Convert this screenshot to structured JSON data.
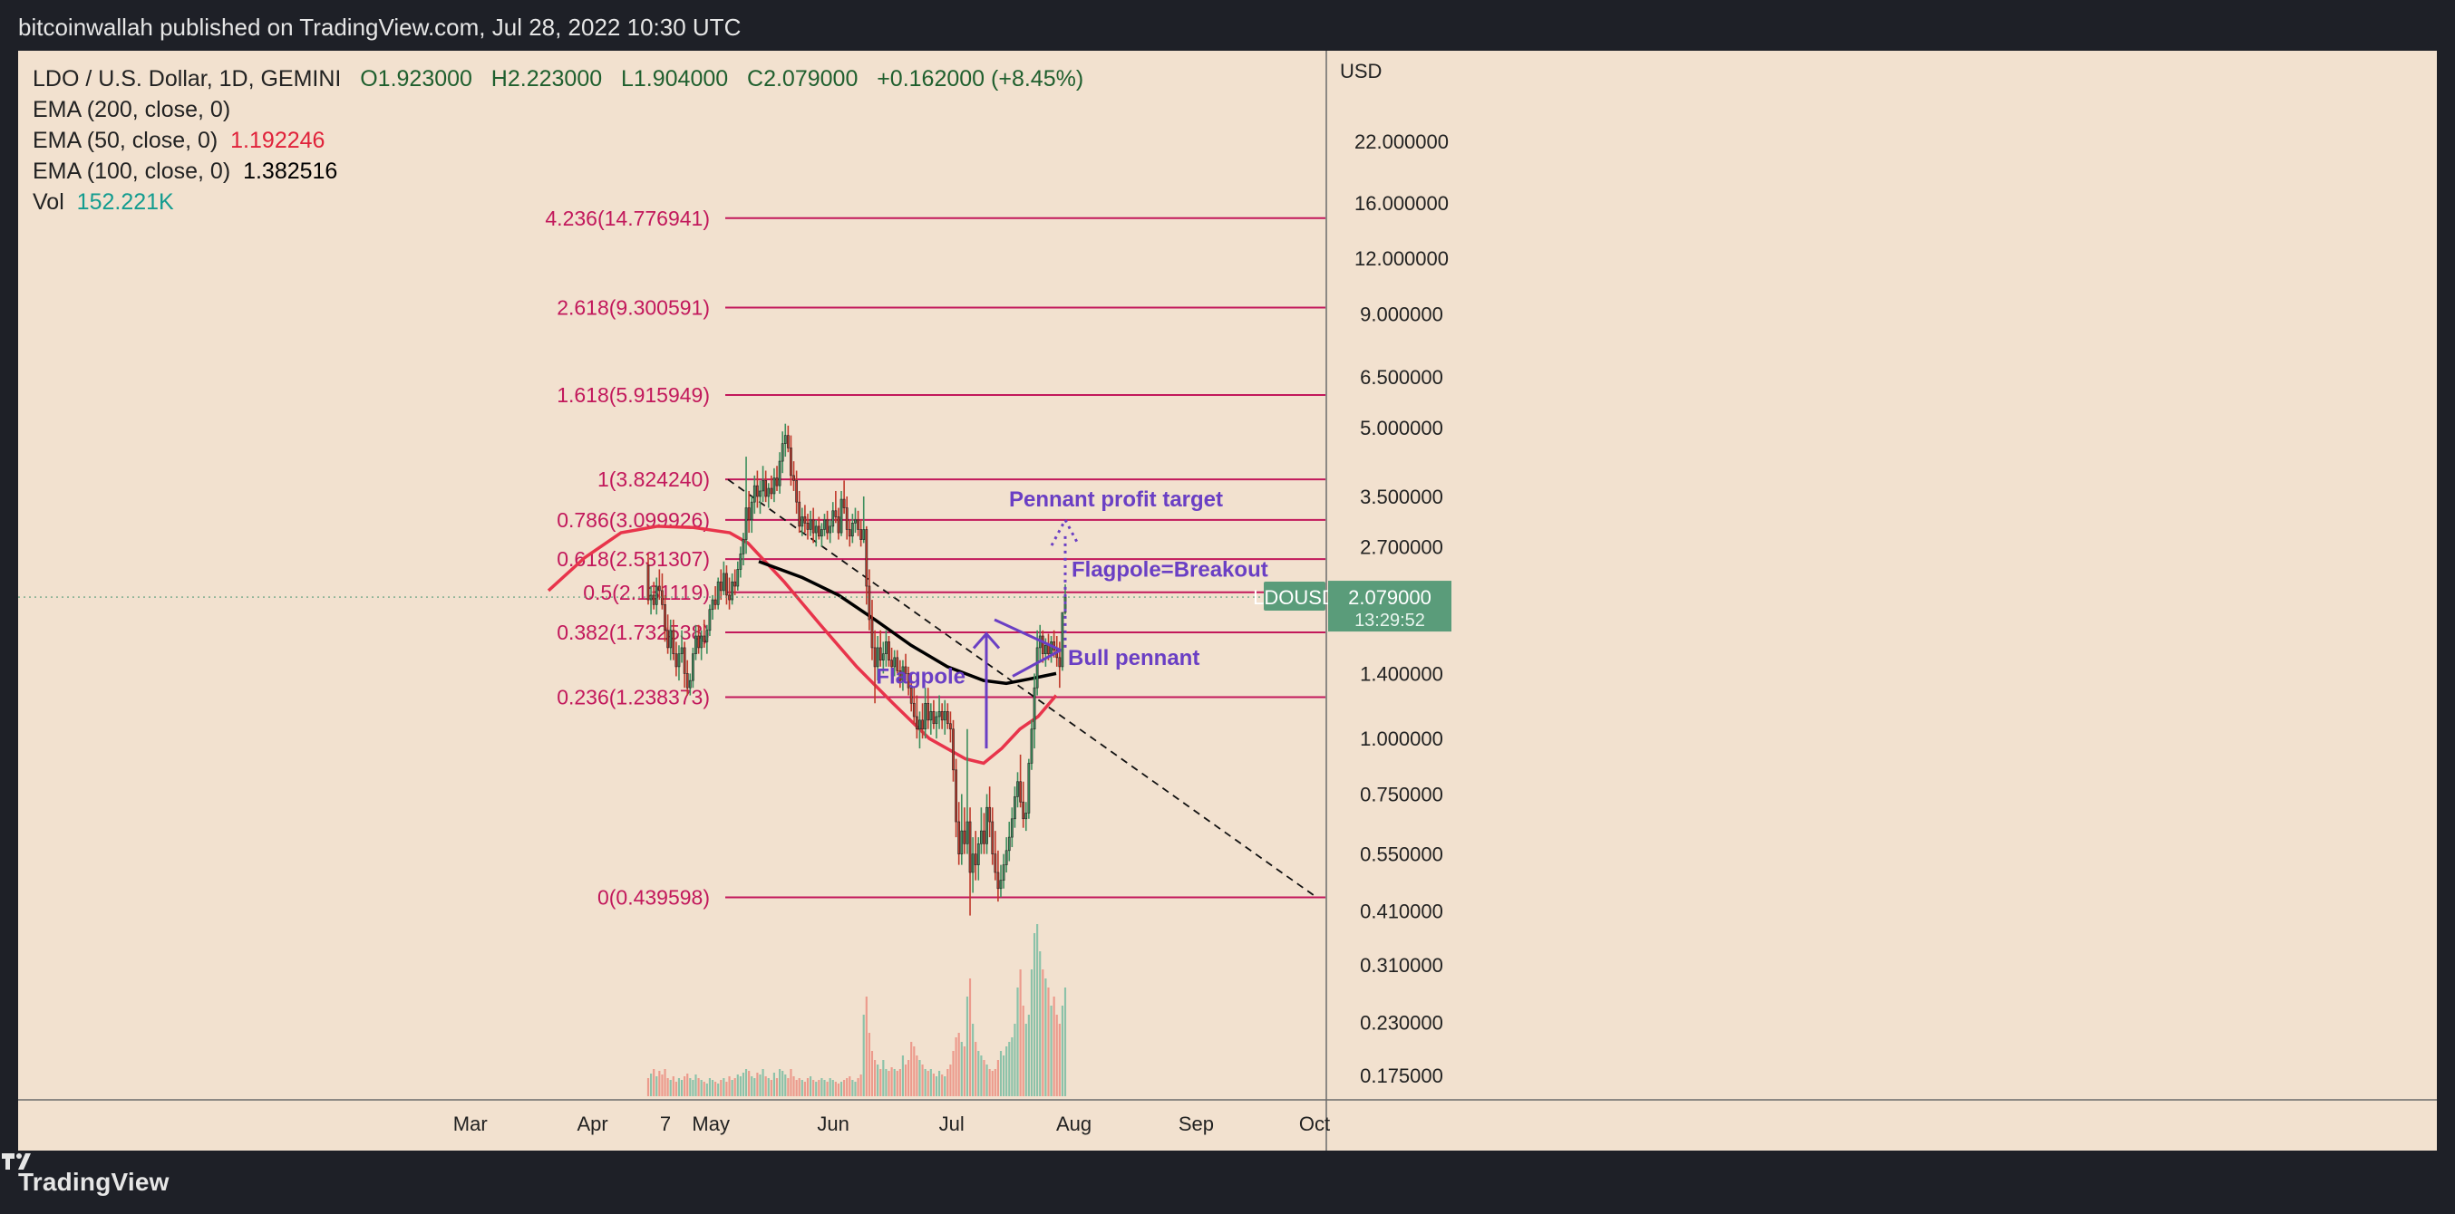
{
  "header": {
    "publisher": "bitcoinwallah published on TradingView.com, Jul 28, 2022 10:30 UTC"
  },
  "footer": {
    "brand": "TradingView"
  },
  "legend": {
    "symbol": "LDO / U.S. Dollar, 1D, GEMINI",
    "ohlc": {
      "o_label": "O",
      "o": "1.923000",
      "h_label": "H",
      "h": "2.223000",
      "l_label": "L",
      "l": "1.904000",
      "c_label": "C",
      "c": "2.079000",
      "change": "+0.162000 (+8.45%)"
    },
    "ema200": {
      "label": "EMA (200, close, 0)",
      "value": ""
    },
    "ema50": {
      "label": "EMA (50, close, 0)",
      "value": "1.192246"
    },
    "ema100": {
      "label": "EMA (100, close, 0)",
      "value": "1.382516"
    },
    "vol": {
      "label": "Vol",
      "value": "152.221K"
    }
  },
  "colors": {
    "background": "#f2e1cf",
    "fib": "#c2185b",
    "up": "#3e8f5e",
    "down": "#c0392b",
    "ema50": "#e8344b",
    "ema100": "#000000",
    "annotation": "#6a3fc4",
    "price_tag": "#5a9c7a"
  },
  "chart_data": {
    "type": "candlestick",
    "y_scale": "log",
    "y_axis_title": "USD",
    "ylim": [
      0.16,
      32
    ],
    "y_ticks": [
      "22.000000",
      "16.000000",
      "12.000000",
      "9.000000",
      "6.500000",
      "5.000000",
      "3.500000",
      "2.700000",
      "1.400000",
      "1.000000",
      "0.750000",
      "0.550000",
      "0.410000",
      "0.310000",
      "0.230000",
      "0.175000"
    ],
    "x_ticks": [
      "7",
      "Mar",
      "Apr",
      "May",
      "Jun",
      "Jul",
      "Aug",
      "Sep",
      "Oct"
    ],
    "x_range": [
      "2022-02-07",
      "2022-10-01"
    ],
    "fib_levels": [
      {
        "label": "4.236(14.776941)",
        "value": 14.776941
      },
      {
        "label": "2.618(9.300591)",
        "value": 9.300591
      },
      {
        "label": "1.618(5.915949)",
        "value": 5.915949
      },
      {
        "label": "1(3.824240)",
        "value": 3.82424
      },
      {
        "label": "0.786(3.099926)",
        "value": 3.099926
      },
      {
        "label": "0.618(2.531307)",
        "value": 2.531307
      },
      {
        "label": "0.5(2.131119)",
        "value": 2.131119
      },
      {
        "label": "0.382(1.732538)",
        "value": 1.732538
      },
      {
        "label": "0.236(1.238373)",
        "value": 1.238373
      },
      {
        "label": "0(0.439598)",
        "value": 0.439598
      }
    ],
    "last_price": {
      "symbol": "LDOUSD",
      "value": "2.079000",
      "countdown": "13:29:52"
    },
    "annotations": {
      "target": "Pennant profit target",
      "breakout": "Flagpole=Breakout",
      "pennant": "Bull pennant",
      "flagpole": "Flagpole"
    },
    "ohlc_daily": [
      [
        2.45,
        2.6,
        2.0,
        2.05
      ],
      [
        2.05,
        2.2,
        1.9,
        2.1
      ],
      [
        2.1,
        2.25,
        1.95,
        2.0
      ],
      [
        2.0,
        2.3,
        1.9,
        2.2
      ],
      [
        2.2,
        2.4,
        2.05,
        2.15
      ],
      [
        2.15,
        2.35,
        1.95,
        2.0
      ],
      [
        2.0,
        2.1,
        1.65,
        1.75
      ],
      [
        1.75,
        1.9,
        1.55,
        1.6
      ],
      [
        1.6,
        1.85,
        1.5,
        1.75
      ],
      [
        1.75,
        1.85,
        1.5,
        1.55
      ],
      [
        1.55,
        1.65,
        1.38,
        1.45
      ],
      [
        1.45,
        1.62,
        1.35,
        1.55
      ],
      [
        1.55,
        1.75,
        1.48,
        1.6
      ],
      [
        1.6,
        1.65,
        1.3,
        1.4
      ],
      [
        1.4,
        1.5,
        1.25,
        1.3
      ],
      [
        1.3,
        1.4,
        1.25,
        1.35
      ],
      [
        1.35,
        1.6,
        1.3,
        1.55
      ],
      [
        1.55,
        1.8,
        1.5,
        1.7
      ],
      [
        1.7,
        1.8,
        1.55,
        1.6
      ],
      [
        1.6,
        1.75,
        1.5,
        1.7
      ],
      [
        1.7,
        1.85,
        1.6,
        1.65
      ],
      [
        1.65,
        1.8,
        1.55,
        1.75
      ],
      [
        1.75,
        2.0,
        1.7,
        1.95
      ],
      [
        1.95,
        2.1,
        1.85,
        2.05
      ],
      [
        2.05,
        2.2,
        1.95,
        2.0
      ],
      [
        2.0,
        2.3,
        1.95,
        2.25
      ],
      [
        2.25,
        2.4,
        2.05,
        2.15
      ],
      [
        2.15,
        2.5,
        2.1,
        2.35
      ],
      [
        2.35,
        2.45,
        2.0,
        2.1
      ],
      [
        2.1,
        2.3,
        1.95,
        2.05
      ],
      [
        2.05,
        2.35,
        2.0,
        2.25
      ],
      [
        2.25,
        2.4,
        2.1,
        2.2
      ],
      [
        2.2,
        2.5,
        2.15,
        2.4
      ],
      [
        2.4,
        2.7,
        2.3,
        2.6
      ],
      [
        2.6,
        2.9,
        2.45,
        2.8
      ],
      [
        2.8,
        4.3,
        2.6,
        3.3
      ],
      [
        3.3,
        3.6,
        2.9,
        3.1
      ],
      [
        3.1,
        3.5,
        2.9,
        3.4
      ],
      [
        3.4,
        3.9,
        3.2,
        3.7
      ],
      [
        3.7,
        4.0,
        3.3,
        3.5
      ],
      [
        3.5,
        3.8,
        3.2,
        3.6
      ],
      [
        3.6,
        4.1,
        3.4,
        3.8
      ],
      [
        3.8,
        4.0,
        3.4,
        3.5
      ],
      [
        3.5,
        3.75,
        3.3,
        3.65
      ],
      [
        3.65,
        3.9,
        3.45,
        3.55
      ],
      [
        3.55,
        4.05,
        3.4,
        3.85
      ],
      [
        3.85,
        4.1,
        3.6,
        3.7
      ],
      [
        3.7,
        4.4,
        3.55,
        4.2
      ],
      [
        4.2,
        4.9,
        3.95,
        4.6
      ],
      [
        4.6,
        5.1,
        4.3,
        4.8
      ],
      [
        4.8,
        5.05,
        4.4,
        4.5
      ],
      [
        4.5,
        4.8,
        3.7,
        3.9
      ],
      [
        3.9,
        4.2,
        3.6,
        3.8
      ],
      [
        3.8,
        4.0,
        3.2,
        3.4
      ],
      [
        3.4,
        3.6,
        2.9,
        3.0
      ],
      [
        3.0,
        3.3,
        2.85,
        3.15
      ],
      [
        3.15,
        3.35,
        2.9,
        3.05
      ],
      [
        3.05,
        3.2,
        2.8,
        2.95
      ],
      [
        2.95,
        3.25,
        2.85,
        3.1
      ],
      [
        3.1,
        3.3,
        2.75,
        2.9
      ],
      [
        2.9,
        3.1,
        2.7,
        3.0
      ],
      [
        3.0,
        3.15,
        2.8,
        2.85
      ],
      [
        2.85,
        3.05,
        2.7,
        2.95
      ],
      [
        2.95,
        3.2,
        2.85,
        3.1
      ],
      [
        3.1,
        3.25,
        2.8,
        2.9
      ],
      [
        2.9,
        3.1,
        2.75,
        3.0
      ],
      [
        3.0,
        3.4,
        2.9,
        3.25
      ],
      [
        3.25,
        3.6,
        3.05,
        3.15
      ],
      [
        3.15,
        3.3,
        2.8,
        2.9
      ],
      [
        2.9,
        3.6,
        2.85,
        3.45
      ],
      [
        3.45,
        3.8,
        3.2,
        3.3
      ],
      [
        3.3,
        3.5,
        2.8,
        2.95
      ],
      [
        2.95,
        3.1,
        2.7,
        2.85
      ],
      [
        2.85,
        3.2,
        2.75,
        3.05
      ],
      [
        3.05,
        3.3,
        2.9,
        3.1
      ],
      [
        3.1,
        3.25,
        2.85,
        2.95
      ],
      [
        2.95,
        3.1,
        2.7,
        2.8
      ],
      [
        2.8,
        3.5,
        2.75,
        2.95
      ],
      [
        2.95,
        3.0,
        2.0,
        2.2
      ],
      [
        2.2,
        2.4,
        1.75,
        1.85
      ],
      [
        1.85,
        2.05,
        1.5,
        1.6
      ],
      [
        1.6,
        1.75,
        1.2,
        1.45
      ],
      [
        1.45,
        1.7,
        1.35,
        1.6
      ],
      [
        1.6,
        1.75,
        1.45,
        1.5
      ],
      [
        1.5,
        1.65,
        1.4,
        1.55
      ],
      [
        1.55,
        1.75,
        1.45,
        1.65
      ],
      [
        1.65,
        1.7,
        1.45,
        1.5
      ],
      [
        1.5,
        1.6,
        1.38,
        1.45
      ],
      [
        1.45,
        1.58,
        1.38,
        1.52
      ],
      [
        1.52,
        1.58,
        1.4,
        1.42
      ],
      [
        1.42,
        1.5,
        1.3,
        1.35
      ],
      [
        1.35,
        1.5,
        1.28,
        1.45
      ],
      [
        1.45,
        1.55,
        1.35,
        1.4
      ],
      [
        1.4,
        1.45,
        1.25,
        1.3
      ],
      [
        1.3,
        1.4,
        1.15,
        1.2
      ],
      [
        1.2,
        1.3,
        1.08,
        1.12
      ],
      [
        1.12,
        1.25,
        1.0,
        1.05
      ],
      [
        1.05,
        1.15,
        0.95,
        1.1
      ],
      [
        1.1,
        1.2,
        1.0,
        1.05
      ],
      [
        1.05,
        1.3,
        1.0,
        1.2
      ],
      [
        1.2,
        1.3,
        1.05,
        1.1
      ],
      [
        1.1,
        1.2,
        1.02,
        1.15
      ],
      [
        1.15,
        1.22,
        1.05,
        1.08
      ],
      [
        1.08,
        1.15,
        1.0,
        1.12
      ],
      [
        1.12,
        1.25,
        1.05,
        1.15
      ],
      [
        1.15,
        1.2,
        1.05,
        1.1
      ],
      [
        1.1,
        1.22,
        1.02,
        1.15
      ],
      [
        1.15,
        1.2,
        1.05,
        1.08
      ],
      [
        1.08,
        1.15,
        0.98,
        1.05
      ],
      [
        1.05,
        1.1,
        0.8,
        0.85
      ],
      [
        0.85,
        0.9,
        0.6,
        0.65
      ],
      [
        0.65,
        0.72,
        0.52,
        0.55
      ],
      [
        0.55,
        0.75,
        0.52,
        0.62
      ],
      [
        0.62,
        0.7,
        0.55,
        0.58
      ],
      [
        0.58,
        1.05,
        0.55,
        0.65
      ],
      [
        0.65,
        0.7,
        0.4,
        0.5
      ],
      [
        0.5,
        0.6,
        0.45,
        0.55
      ],
      [
        0.55,
        0.62,
        0.48,
        0.52
      ],
      [
        0.52,
        0.6,
        0.48,
        0.58
      ],
      [
        0.58,
        0.7,
        0.55,
        0.62
      ],
      [
        0.62,
        0.68,
        0.55,
        0.58
      ],
      [
        0.58,
        0.75,
        0.55,
        0.7
      ],
      [
        0.7,
        0.78,
        0.6,
        0.65
      ],
      [
        0.65,
        0.7,
        0.52,
        0.55
      ],
      [
        0.55,
        0.62,
        0.48,
        0.5
      ],
      [
        0.5,
        0.56,
        0.43,
        0.46
      ],
      [
        0.46,
        0.52,
        0.44,
        0.48
      ],
      [
        0.48,
        0.55,
        0.46,
        0.52
      ],
      [
        0.52,
        0.6,
        0.5,
        0.56
      ],
      [
        0.56,
        0.65,
        0.53,
        0.6
      ],
      [
        0.6,
        0.7,
        0.57,
        0.66
      ],
      [
        0.66,
        0.78,
        0.63,
        0.74
      ],
      [
        0.74,
        0.84,
        0.7,
        0.8
      ],
      [
        0.8,
        0.92,
        0.7,
        0.72
      ],
      [
        0.72,
        0.8,
        0.63,
        0.66
      ],
      [
        0.66,
        0.72,
        0.62,
        0.68
      ],
      [
        0.68,
        0.9,
        0.66,
        0.88
      ],
      [
        0.88,
        1.1,
        0.85,
        1.05
      ],
      [
        1.05,
        1.4,
        0.95,
        1.3
      ],
      [
        1.3,
        1.75,
        1.25,
        1.6
      ],
      [
        1.6,
        1.8,
        1.5,
        1.7
      ],
      [
        1.7,
        1.75,
        1.48,
        1.55
      ],
      [
        1.55,
        1.68,
        1.45,
        1.62
      ],
      [
        1.62,
        1.72,
        1.5,
        1.55
      ],
      [
        1.55,
        1.7,
        1.48,
        1.65
      ],
      [
        1.65,
        1.75,
        1.52,
        1.58
      ],
      [
        1.58,
        1.7,
        1.45,
        1.52
      ],
      [
        1.52,
        1.65,
        1.3,
        1.45
      ],
      [
        1.45,
        1.85,
        1.42,
        1.92
      ],
      [
        1.92,
        2.22,
        1.9,
        2.08
      ]
    ],
    "volume": [
      0.02,
      0.025,
      0.03,
      0.022,
      0.028,
      0.024,
      0.03,
      0.02,
      0.018,
      0.022,
      0.016,
      0.02,
      0.018,
      0.022,
      0.025,
      0.02,
      0.018,
      0.024,
      0.02,
      0.018,
      0.016,
      0.014,
      0.02,
      0.018,
      0.016,
      0.014,
      0.018,
      0.02,
      0.016,
      0.022,
      0.018,
      0.02,
      0.024,
      0.022,
      0.026,
      0.03,
      0.028,
      0.022,
      0.02,
      0.026,
      0.024,
      0.03,
      0.022,
      0.02,
      0.018,
      0.026,
      0.02,
      0.03,
      0.028,
      0.024,
      0.02,
      0.03,
      0.022,
      0.018,
      0.02,
      0.018,
      0.016,
      0.02,
      0.022,
      0.018,
      0.016,
      0.018,
      0.02,
      0.018,
      0.016,
      0.02,
      0.018,
      0.016,
      0.014,
      0.016,
      0.018,
      0.02,
      0.022,
      0.018,
      0.016,
      0.02,
      0.024,
      0.09,
      0.11,
      0.07,
      0.05,
      0.04,
      0.035,
      0.03,
      0.04,
      0.03,
      0.028,
      0.032,
      0.03,
      0.028,
      0.03,
      0.045,
      0.035,
      0.04,
      0.06,
      0.055,
      0.045,
      0.04,
      0.035,
      0.03,
      0.028,
      0.03,
      0.025,
      0.022,
      0.028,
      0.024,
      0.022,
      0.03,
      0.035,
      0.05,
      0.065,
      0.07,
      0.06,
      0.055,
      0.11,
      0.13,
      0.08,
      0.06,
      0.05,
      0.045,
      0.04,
      0.035,
      0.03,
      0.028,
      0.03,
      0.04,
      0.05,
      0.045,
      0.055,
      0.06,
      0.065,
      0.08,
      0.12,
      0.14,
      0.1,
      0.08,
      0.09,
      0.14,
      0.18,
      0.19,
      0.16,
      0.14,
      0.13,
      0.12,
      0.1,
      0.11,
      0.09,
      0.08,
      0.1,
      0.12
    ]
  }
}
